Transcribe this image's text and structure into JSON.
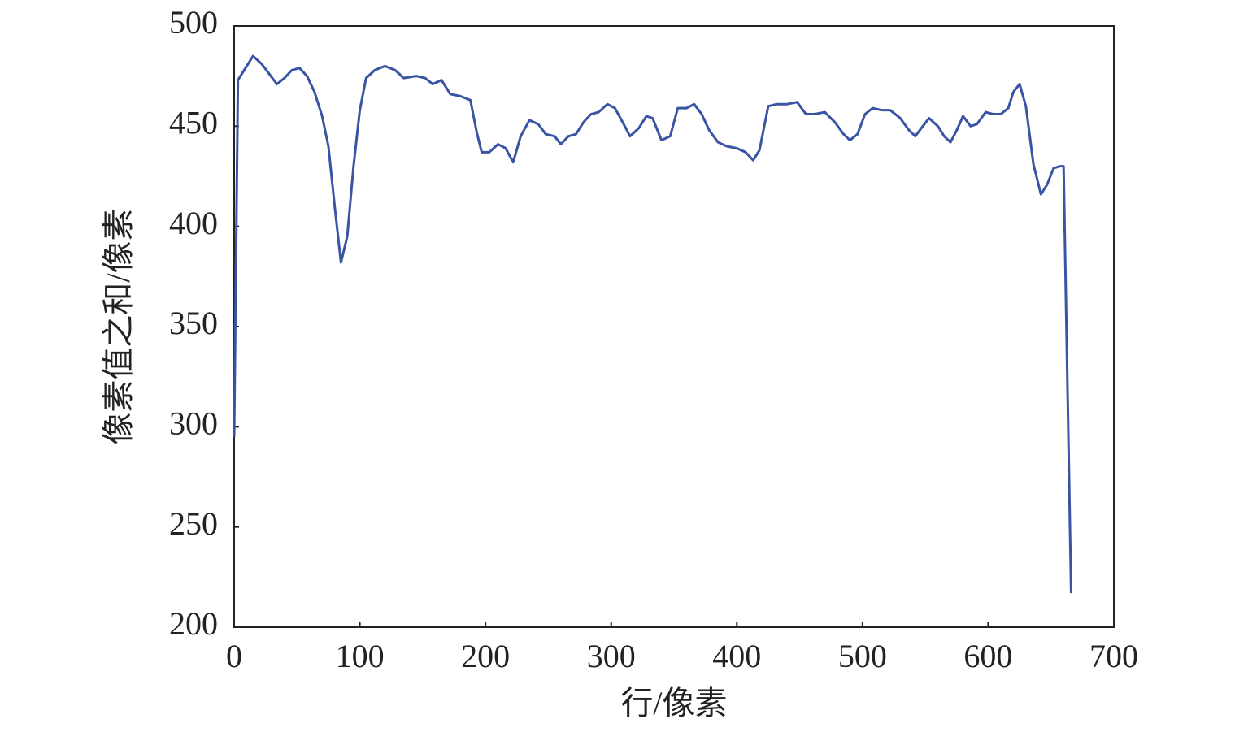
{
  "chart_data": {
    "type": "line",
    "x_label": "行/像素",
    "y_label": "像素值之和/像素",
    "x": [
      0,
      3,
      8,
      15,
      22,
      28,
      34,
      40,
      46,
      52,
      58,
      64,
      70,
      75,
      80,
      85,
      90,
      95,
      100,
      105,
      112,
      120,
      128,
      135,
      145,
      152,
      158,
      165,
      172,
      180,
      188,
      193,
      197,
      203,
      210,
      216,
      222,
      228,
      235,
      242,
      248,
      255,
      260,
      266,
      272,
      278,
      284,
      290,
      297,
      303,
      310,
      315,
      322,
      328,
      333,
      340,
      347,
      353,
      360,
      366,
      372,
      378,
      385,
      392,
      400,
      407,
      413,
      418,
      425,
      432,
      440,
      448,
      455,
      462,
      470,
      478,
      485,
      490,
      496,
      502,
      508,
      515,
      522,
      530,
      537,
      542,
      548,
      553,
      560,
      565,
      570,
      575,
      580,
      586,
      591,
      598,
      604,
      610,
      616,
      620,
      625,
      630,
      636,
      642,
      647,
      652,
      657,
      660,
      666
    ],
    "series": [
      {
        "color": "#3a54a4",
        "values": [
          295,
          473,
          478,
          485,
          481,
          476,
          471,
          474,
          478,
          479,
          475,
          467,
          455,
          440,
          410,
          382,
          395,
          430,
          458,
          474,
          478,
          480,
          478,
          474,
          475,
          474,
          471,
          473,
          466,
          465,
          463,
          447,
          437,
          437,
          441,
          439,
          432,
          445,
          453,
          451,
          446,
          445,
          441,
          445,
          446,
          452,
          456,
          457,
          461,
          459,
          451,
          445,
          449,
          455,
          454,
          443,
          445,
          459,
          459,
          461,
          456,
          448,
          442,
          440,
          439,
          437,
          433,
          438,
          460,
          461,
          461,
          462,
          456,
          456,
          457,
          452,
          446,
          443,
          446,
          456,
          459,
          458,
          458,
          454,
          448,
          445,
          450,
          454,
          450,
          445,
          442,
          448,
          455,
          450,
          451,
          457,
          456,
          456,
          459,
          467,
          471,
          460,
          431,
          416,
          421,
          429,
          430,
          430,
          217
        ]
      }
    ],
    "xlim": [
      0,
      700
    ],
    "xticks": [
      0,
      100,
      200,
      300,
      400,
      500,
      600,
      700
    ],
    "ylim": [
      200,
      500
    ],
    "yticks": [
      200,
      250,
      300,
      350,
      400,
      450,
      500
    ]
  }
}
